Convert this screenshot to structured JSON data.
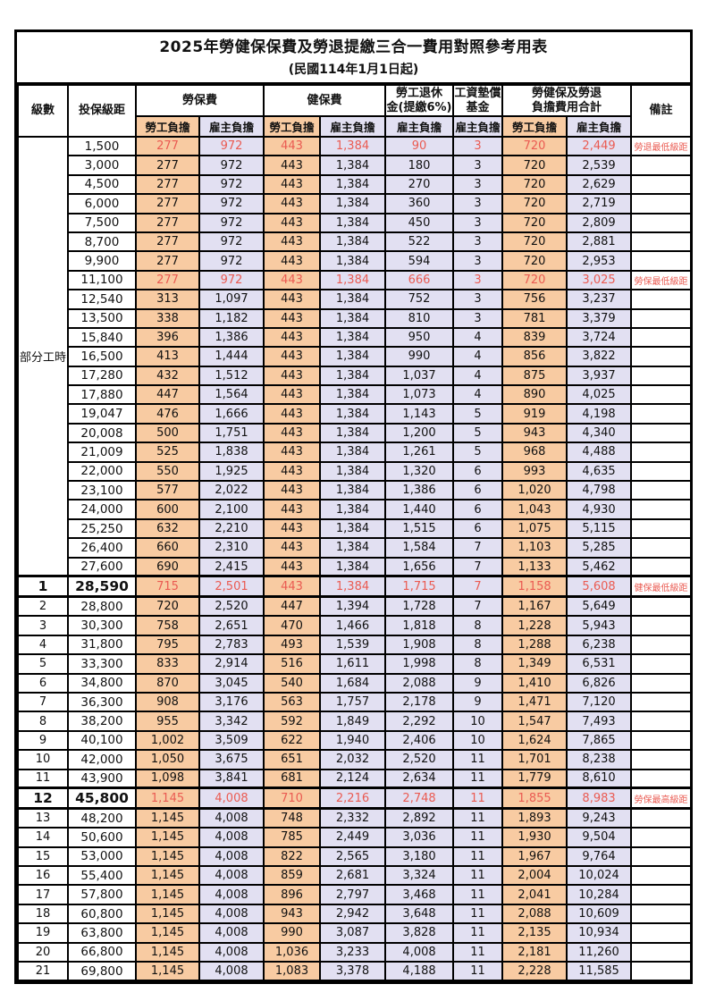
{
  "title": {
    "line1": "2025年勞健保保費及勞退提繳三合一費用對照參考用表",
    "line2": "(民國114年1月1日起)"
  },
  "colors": {
    "employee_bg": "#F8CBA2",
    "employer_bg": "#E2E0F2",
    "highlight_red": "#EA5B52",
    "grid": "#000000"
  },
  "header": {
    "level": "級數",
    "salary": "投保級距",
    "labor_group": "勞保費",
    "health_group": "健保費",
    "pension_line1": "勞工退休",
    "pension_line2": "金(提繳6%)",
    "wage_line1": "工資墊償",
    "wage_line2": "基金",
    "total_line1": "勞健保及勞退",
    "total_line2": "負擔費用合計",
    "remark": "備註",
    "employee": "勞工負擔",
    "employer": "雇主負擔"
  },
  "table": {
    "part_time_label": "部分工時",
    "part_time_rowspan": 23,
    "rows": [
      {
        "salary": "1,500",
        "values": [
          "277",
          "972",
          "443",
          "1,384",
          "90",
          "3",
          "720",
          "2,449"
        ],
        "remark": "勞退最低級距",
        "red": true
      },
      {
        "salary": "3,000",
        "values": [
          "277",
          "972",
          "443",
          "1,384",
          "180",
          "3",
          "720",
          "2,539"
        ],
        "remark": ""
      },
      {
        "salary": "4,500",
        "values": [
          "277",
          "972",
          "443",
          "1,384",
          "270",
          "3",
          "720",
          "2,629"
        ],
        "remark": ""
      },
      {
        "salary": "6,000",
        "values": [
          "277",
          "972",
          "443",
          "1,384",
          "360",
          "3",
          "720",
          "2,719"
        ],
        "remark": ""
      },
      {
        "salary": "7,500",
        "values": [
          "277",
          "972",
          "443",
          "1,384",
          "450",
          "3",
          "720",
          "2,809"
        ],
        "remark": ""
      },
      {
        "salary": "8,700",
        "values": [
          "277",
          "972",
          "443",
          "1,384",
          "522",
          "3",
          "720",
          "2,881"
        ],
        "remark": ""
      },
      {
        "salary": "9,900",
        "values": [
          "277",
          "972",
          "443",
          "1,384",
          "594",
          "3",
          "720",
          "2,953"
        ],
        "remark": ""
      },
      {
        "salary": "11,100",
        "values": [
          "277",
          "972",
          "443",
          "1,384",
          "666",
          "3",
          "720",
          "3,025"
        ],
        "remark": "勞保最低級距",
        "red": true
      },
      {
        "salary": "12,540",
        "values": [
          "313",
          "1,097",
          "443",
          "1,384",
          "752",
          "3",
          "756",
          "3,237"
        ],
        "remark": ""
      },
      {
        "salary": "13,500",
        "values": [
          "338",
          "1,182",
          "443",
          "1,384",
          "810",
          "3",
          "781",
          "3,379"
        ],
        "remark": ""
      },
      {
        "salary": "15,840",
        "values": [
          "396",
          "1,386",
          "443",
          "1,384",
          "950",
          "4",
          "839",
          "3,724"
        ],
        "remark": ""
      },
      {
        "salary": "16,500",
        "values": [
          "413",
          "1,444",
          "443",
          "1,384",
          "990",
          "4",
          "856",
          "3,822"
        ],
        "remark": ""
      },
      {
        "salary": "17,280",
        "values": [
          "432",
          "1,512",
          "443",
          "1,384",
          "1,037",
          "4",
          "875",
          "3,937"
        ],
        "remark": ""
      },
      {
        "salary": "17,880",
        "values": [
          "447",
          "1,564",
          "443",
          "1,384",
          "1,073",
          "4",
          "890",
          "4,025"
        ],
        "remark": ""
      },
      {
        "salary": "19,047",
        "values": [
          "476",
          "1,666",
          "443",
          "1,384",
          "1,143",
          "5",
          "919",
          "4,198"
        ],
        "remark": ""
      },
      {
        "salary": "20,008",
        "values": [
          "500",
          "1,751",
          "443",
          "1,384",
          "1,200",
          "5",
          "943",
          "4,340"
        ],
        "remark": ""
      },
      {
        "salary": "21,009",
        "values": [
          "525",
          "1,838",
          "443",
          "1,384",
          "1,261",
          "5",
          "968",
          "4,488"
        ],
        "remark": ""
      },
      {
        "salary": "22,000",
        "values": [
          "550",
          "1,925",
          "443",
          "1,384",
          "1,320",
          "6",
          "993",
          "4,635"
        ],
        "remark": ""
      },
      {
        "salary": "23,100",
        "values": [
          "577",
          "2,022",
          "443",
          "1,384",
          "1,386",
          "6",
          "1,020",
          "4,798"
        ],
        "remark": ""
      },
      {
        "salary": "24,000",
        "values": [
          "600",
          "2,100",
          "443",
          "1,384",
          "1,440",
          "6",
          "1,043",
          "4,930"
        ],
        "remark": ""
      },
      {
        "salary": "25,250",
        "values": [
          "632",
          "2,210",
          "443",
          "1,384",
          "1,515",
          "6",
          "1,075",
          "5,115"
        ],
        "remark": ""
      },
      {
        "salary": "26,400",
        "values": [
          "660",
          "2,310",
          "443",
          "1,384",
          "1,584",
          "7",
          "1,103",
          "5,285"
        ],
        "remark": ""
      },
      {
        "salary": "27,600",
        "values": [
          "690",
          "2,415",
          "443",
          "1,384",
          "1,656",
          "7",
          "1,133",
          "5,462"
        ],
        "remark": ""
      },
      {
        "level": "1",
        "salary": "28,590",
        "values": [
          "715",
          "2,501",
          "443",
          "1,384",
          "1,715",
          "7",
          "1,158",
          "5,608"
        ],
        "remark": "健保最低級距",
        "red": true,
        "strong": true
      },
      {
        "level": "2",
        "salary": "28,800",
        "values": [
          "720",
          "2,520",
          "447",
          "1,394",
          "1,728",
          "7",
          "1,167",
          "5,649"
        ],
        "remark": ""
      },
      {
        "level": "3",
        "salary": "30,300",
        "values": [
          "758",
          "2,651",
          "470",
          "1,466",
          "1,818",
          "8",
          "1,228",
          "5,943"
        ],
        "remark": ""
      },
      {
        "level": "4",
        "salary": "31,800",
        "values": [
          "795",
          "2,783",
          "493",
          "1,539",
          "1,908",
          "8",
          "1,288",
          "6,238"
        ],
        "remark": ""
      },
      {
        "level": "5",
        "salary": "33,300",
        "values": [
          "833",
          "2,914",
          "516",
          "1,611",
          "1,998",
          "8",
          "1,349",
          "6,531"
        ],
        "remark": ""
      },
      {
        "level": "6",
        "salary": "34,800",
        "values": [
          "870",
          "3,045",
          "540",
          "1,684",
          "2,088",
          "9",
          "1,410",
          "6,826"
        ],
        "remark": ""
      },
      {
        "level": "7",
        "salary": "36,300",
        "values": [
          "908",
          "3,176",
          "563",
          "1,757",
          "2,178",
          "9",
          "1,471",
          "7,120"
        ],
        "remark": ""
      },
      {
        "level": "8",
        "salary": "38,200",
        "values": [
          "955",
          "3,342",
          "592",
          "1,849",
          "2,292",
          "10",
          "1,547",
          "7,493"
        ],
        "remark": ""
      },
      {
        "level": "9",
        "salary": "40,100",
        "values": [
          "1,002",
          "3,509",
          "622",
          "1,940",
          "2,406",
          "10",
          "1,624",
          "7,865"
        ],
        "remark": ""
      },
      {
        "level": "10",
        "salary": "42,000",
        "values": [
          "1,050",
          "3,675",
          "651",
          "2,032",
          "2,520",
          "11",
          "1,701",
          "8,238"
        ],
        "remark": ""
      },
      {
        "level": "11",
        "salary": "43,900",
        "values": [
          "1,098",
          "3,841",
          "681",
          "2,124",
          "2,634",
          "11",
          "1,779",
          "8,610"
        ],
        "remark": ""
      },
      {
        "level": "12",
        "salary": "45,800",
        "values": [
          "1,145",
          "4,008",
          "710",
          "2,216",
          "2,748",
          "11",
          "1,855",
          "8,983"
        ],
        "remark": "勞保最高級距",
        "red": true,
        "strong": true
      },
      {
        "level": "13",
        "salary": "48,200",
        "values": [
          "1,145",
          "4,008",
          "748",
          "2,332",
          "2,892",
          "11",
          "1,893",
          "9,243"
        ],
        "remark": ""
      },
      {
        "level": "14",
        "salary": "50,600",
        "values": [
          "1,145",
          "4,008",
          "785",
          "2,449",
          "3,036",
          "11",
          "1,930",
          "9,504"
        ],
        "remark": ""
      },
      {
        "level": "15",
        "salary": "53,000",
        "values": [
          "1,145",
          "4,008",
          "822",
          "2,565",
          "3,180",
          "11",
          "1,967",
          "9,764"
        ],
        "remark": ""
      },
      {
        "level": "16",
        "salary": "55,400",
        "values": [
          "1,145",
          "4,008",
          "859",
          "2,681",
          "3,324",
          "11",
          "2,004",
          "10,024"
        ],
        "remark": ""
      },
      {
        "level": "17",
        "salary": "57,800",
        "values": [
          "1,145",
          "4,008",
          "896",
          "2,797",
          "3,468",
          "11",
          "2,041",
          "10,284"
        ],
        "remark": ""
      },
      {
        "level": "18",
        "salary": "60,800",
        "values": [
          "1,145",
          "4,008",
          "943",
          "2,942",
          "3,648",
          "11",
          "2,088",
          "10,609"
        ],
        "remark": ""
      },
      {
        "level": "19",
        "salary": "63,800",
        "values": [
          "1,145",
          "4,008",
          "990",
          "3,087",
          "3,828",
          "11",
          "2,135",
          "10,934"
        ],
        "remark": ""
      },
      {
        "level": "20",
        "salary": "66,800",
        "values": [
          "1,145",
          "4,008",
          "1,036",
          "3,233",
          "4,008",
          "11",
          "2,181",
          "11,260"
        ],
        "remark": ""
      },
      {
        "level": "21",
        "salary": "69,800",
        "values": [
          "1,145",
          "4,008",
          "1,083",
          "3,378",
          "4,188",
          "11",
          "2,228",
          "11,585"
        ],
        "remark": ""
      }
    ]
  }
}
